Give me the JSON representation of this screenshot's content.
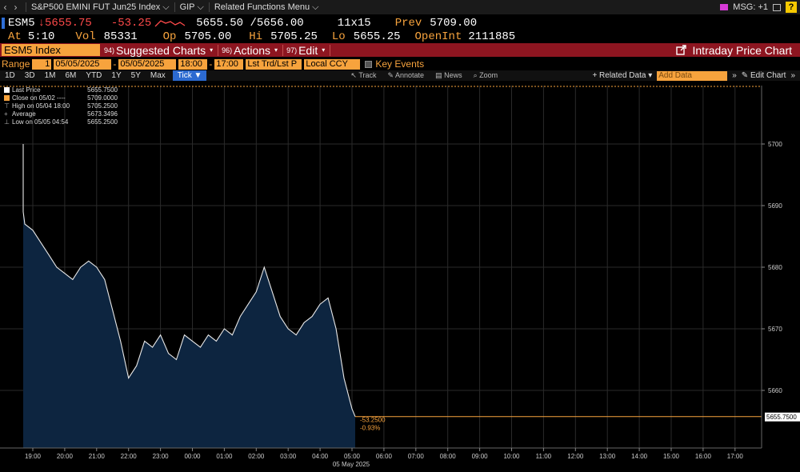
{
  "titlebar": {
    "security": "S&P500 EMINI FUT Jun25 Index",
    "source": "GIP",
    "related_menu": "Related Functions Menu",
    "msg": "MSG: +1",
    "help": "?"
  },
  "quote": {
    "ticker": "ESM5",
    "arrow": "↓",
    "last": "5655.75",
    "change": "-53.25",
    "bid_ask": "5655.50 /5656.00",
    "size": "11x15",
    "prev_label": "Prev",
    "prev": "5709.00",
    "at_label": "At",
    "at_time": "5:10",
    "vol_label": "Vol",
    "vol": "85331",
    "op_label": "Op",
    "op": "5705.00",
    "hi_label": "Hi",
    "hi": "5705.25",
    "lo_label": "Lo",
    "lo": "5655.25",
    "oi_label": "OpenInt",
    "oi": "2111885"
  },
  "menubar": {
    "ticker_field": "ESM5 Index",
    "suggested_num": "94)",
    "suggested": "Suggested Charts",
    "actions_num": "96)",
    "actions": "Actions",
    "edit_num": "97)",
    "edit": "Edit",
    "intraday": "Intraday Price Chart"
  },
  "rangebar": {
    "range_label": "Range",
    "range_value": "1",
    "start_date": "05/05/2025",
    "end_date": "05/05/2025",
    "start_time": "18:00",
    "end_time": "17:00",
    "price_field": "Lst Trd/Lst P",
    "currency": "Local CCY",
    "key_events": "Key Events"
  },
  "periodbar": {
    "periods": [
      "1D",
      "3D",
      "1M",
      "6M",
      "YTD",
      "1Y",
      "5Y",
      "Max"
    ],
    "tick": "Tick ▼",
    "tools": [
      "Track",
      "Annotate",
      "News",
      "Zoom"
    ],
    "related": "+ Related Data ▾",
    "add_data": "Add Data",
    "edit_chart": "Edit Chart"
  },
  "legend": {
    "items": [
      {
        "label": "Last Price",
        "value": "5655.7500"
      },
      {
        "label": "Close on 05/02 ----",
        "value": "5709.0000"
      },
      {
        "label": "High on 05/04 18:00",
        "value": "5705.2500"
      },
      {
        "label": "Average",
        "value": "5673.3496"
      },
      {
        "label": "Low on 05/05 04:54",
        "value": "5655.2500"
      }
    ]
  },
  "colors": {
    "accent": "#f7a33d",
    "menu_bg": "#8d1520",
    "area_fill": "#0d2540",
    "down": "#ff4a4a",
    "selected": "#2c6ad0"
  },
  "chart_data": {
    "type": "line",
    "last_label": "5655.7500",
    "change_label": "-53.2500",
    "pct_label": "-0.93%",
    "date_label": "05 May 2025",
    "y_ticks": [
      5660,
      5670,
      5680,
      5690,
      5700
    ],
    "x_ticks": [
      "19:00",
      "20:00",
      "21:00",
      "22:00",
      "23:00",
      "00:00",
      "01:00",
      "02:00",
      "03:00",
      "04:00",
      "05:00",
      "06:00",
      "07:00",
      "08:00",
      "09:00",
      "10:00",
      "11:00",
      "12:00",
      "13:00",
      "14:00",
      "15:00",
      "16:00",
      "17:00"
    ],
    "ylim": [
      5650,
      5703
    ],
    "last_price": 5655.75,
    "x": [
      18.0,
      18.25,
      18.5,
      18.75,
      19.0,
      19.25,
      19.5,
      19.75,
      20.0,
      20.25,
      20.5,
      20.75,
      21.0,
      21.25,
      21.5,
      21.75,
      22.0,
      22.25,
      22.5,
      22.75,
      23.0,
      23.25,
      23.5,
      23.75,
      24.0,
      24.25,
      24.5,
      24.75,
      25.0,
      25.25,
      25.5,
      25.75,
      26.0,
      26.25,
      26.5,
      26.75,
      27.0,
      27.25,
      27.5,
      27.75,
      28.0,
      28.25,
      28.5,
      28.75,
      29.0,
      29.1
    ],
    "y": [
      5700,
      5692,
      5689,
      5687,
      5686,
      5684,
      5682,
      5680,
      5679,
      5678,
      5680,
      5681,
      5680,
      5678,
      5673,
      5668,
      5662,
      5664,
      5668,
      5667,
      5669,
      5666,
      5665,
      5669,
      5668,
      5667,
      5669,
      5668,
      5670,
      5669,
      5672,
      5674,
      5676,
      5680,
      5676,
      5672,
      5670,
      5669,
      5671,
      5672,
      5674,
      5675,
      5670,
      5662,
      5657,
      5655.75
    ]
  }
}
